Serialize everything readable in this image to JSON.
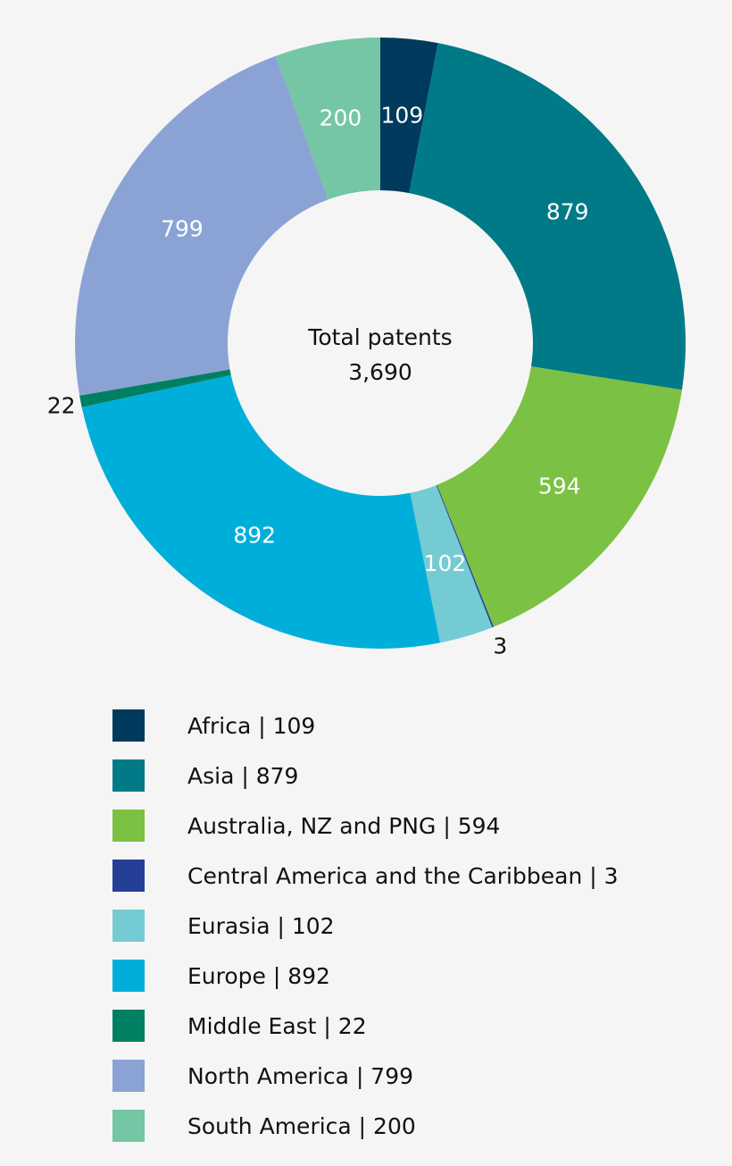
{
  "chart_data": {
    "type": "pie",
    "subtype": "donut",
    "center_label": "Total patents",
    "center_value": "3,690",
    "slices": [
      {
        "label": "Africa",
        "value": 109,
        "color": "#003a5d",
        "legend": "Africa | 109",
        "label_inside": true
      },
      {
        "label": "Asia",
        "value": 879,
        "color": "#007a87",
        "legend": "Asia | 879",
        "label_inside": true
      },
      {
        "label": "Australia, NZ and PNG",
        "value": 594,
        "color": "#7bc143",
        "legend": "Australia, NZ and PNG | 594",
        "label_inside": true
      },
      {
        "label": "Central America and the Caribbean",
        "value": 3,
        "color": "#243f95",
        "legend": "Central America and the Caribbean | 3",
        "label_inside": false
      },
      {
        "label": "Eurasia",
        "value": 102,
        "color": "#74cbd3",
        "legend": "Eurasia | 102",
        "label_inside": true
      },
      {
        "label": "Europe",
        "value": 892,
        "color": "#00afd9",
        "legend": "Europe | 892",
        "label_inside": true
      },
      {
        "label": "Middle East",
        "value": 22,
        "color": "#008063",
        "legend": "Middle East | 22",
        "label_inside": false
      },
      {
        "label": "North America",
        "value": 799,
        "color": "#8ba3d4",
        "legend": "North America | 799",
        "label_inside": true
      },
      {
        "label": "South America",
        "value": 200,
        "color": "#74c6a5",
        "legend": "South America | 200",
        "label_inside": true
      }
    ],
    "legend_position": "bottom"
  }
}
